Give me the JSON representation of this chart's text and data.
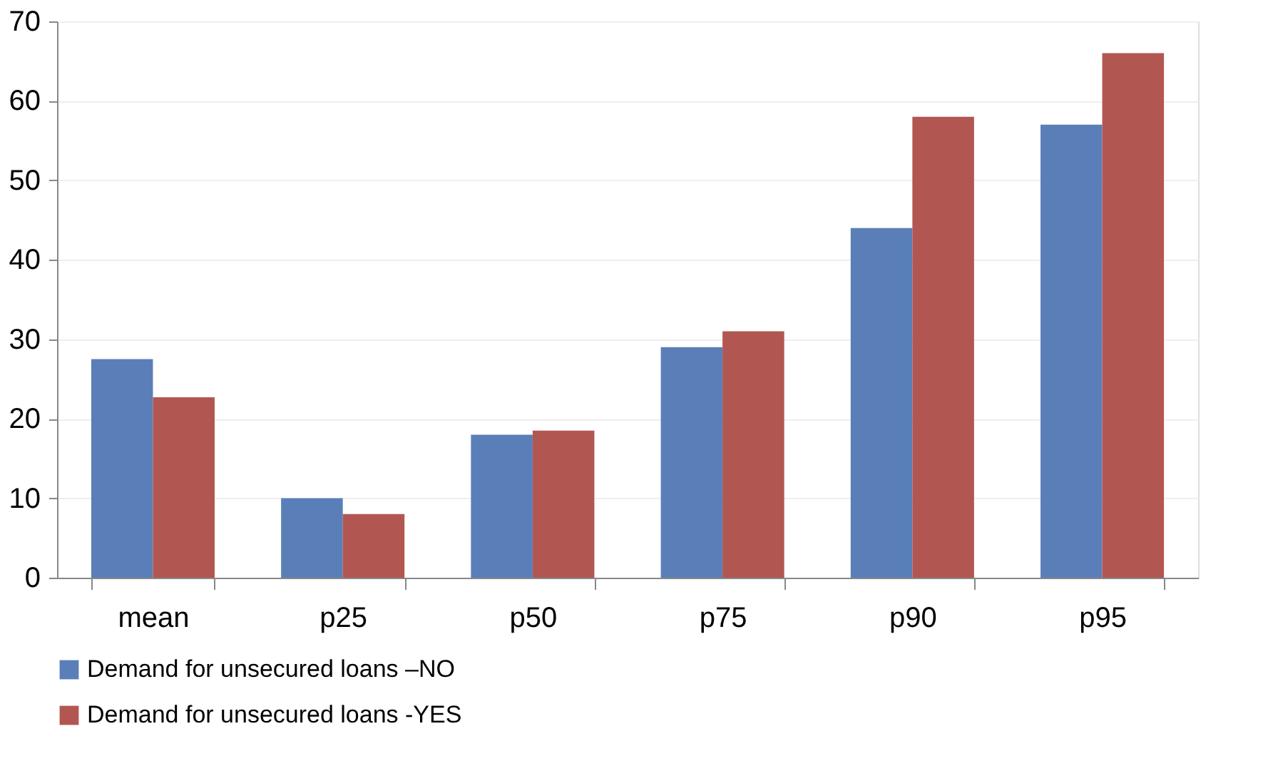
{
  "chart_data": {
    "type": "bar",
    "categories": [
      "mean",
      "p25",
      "p50",
      "p75",
      "p90",
      "p95"
    ],
    "series": [
      {
        "name": "Demand for unsecured loans –NO",
        "color": "#5a7fb8",
        "values": [
          27.5,
          10,
          18,
          29,
          44,
          57
        ]
      },
      {
        "name": "Demand for unsecured loans -YES",
        "color": "#b25651",
        "values": [
          22.7,
          8,
          18.5,
          31,
          58,
          66
        ]
      }
    ],
    "ylim": [
      0,
      70
    ],
    "yticks": [
      0,
      10,
      20,
      30,
      40,
      50,
      60,
      70
    ],
    "grid": "y",
    "legend": "bottom"
  }
}
